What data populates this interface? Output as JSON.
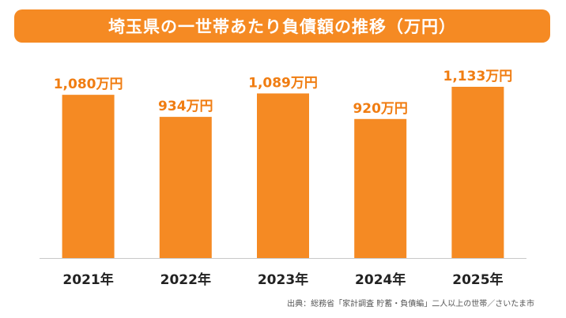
{
  "colors": {
    "accent": "#f58a23",
    "title_text": "#ffffff",
    "value_label": "#f07d12",
    "category_label": "#222222",
    "baseline": "#c8c8c8"
  },
  "chart_data": {
    "type": "bar",
    "title": "埼玉県の一世帯あたり負債額の推移（万円）",
    "categories": [
      "2021年",
      "2022年",
      "2023年",
      "2024年",
      "2025年"
    ],
    "values": [
      1080,
      934,
      1089,
      920,
      1133
    ],
    "data_labels": [
      "1,080万円",
      "934万円",
      "1,089万円",
      "920万円",
      "1,133万円"
    ],
    "ylim": [
      0,
      1300
    ],
    "grid": false,
    "legend": "none"
  },
  "source": "出典：総務省「家計調査 貯蓄・負債編」二人以上の世帯／さいたま市"
}
